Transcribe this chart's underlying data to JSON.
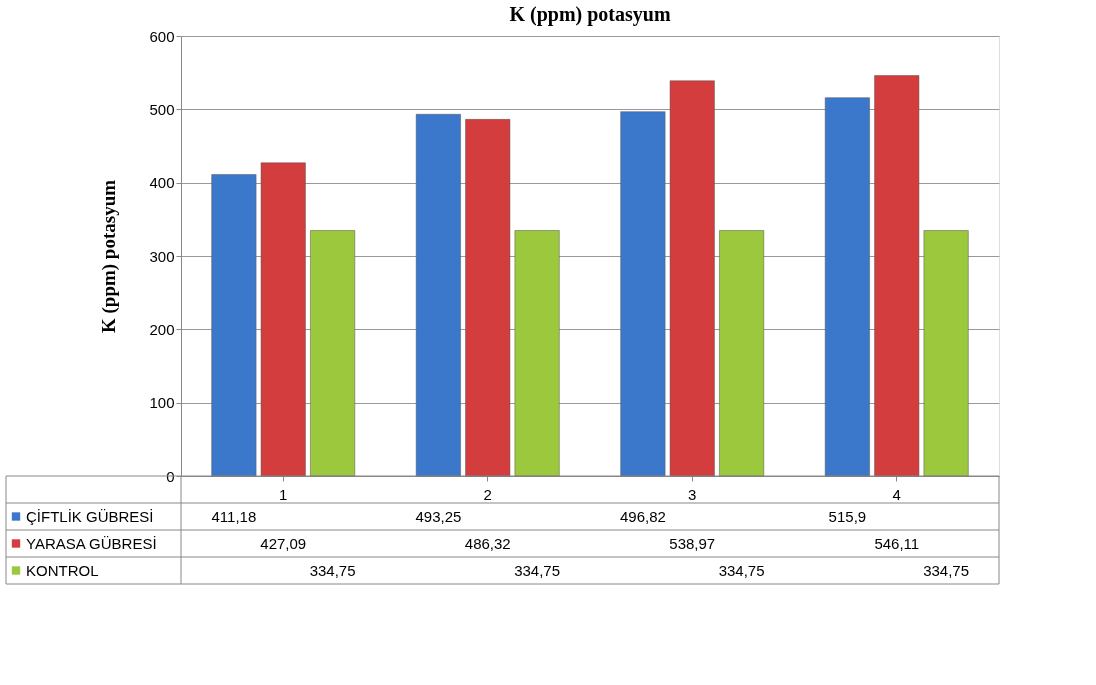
{
  "chart_data": {
    "type": "bar",
    "title": "K (ppm) potasyum",
    "ylabel": "K (ppm) potasyum",
    "categories": [
      "1",
      "2",
      "3",
      "4"
    ],
    "series": [
      {
        "name": "ÇİFTLİK GÜBRESİ",
        "color": "#3b78cc",
        "values": [
          411.18,
          493.25,
          496.82,
          515.9
        ],
        "value_labels": [
          "411,18",
          "493,25",
          "496,82",
          "515,9"
        ]
      },
      {
        "name": "YARASA GÜBRESİ",
        "color": "#d43d3d",
        "values": [
          427.09,
          486.32,
          538.97,
          546.11
        ],
        "value_labels": [
          "427,09",
          "486,32",
          "538,97",
          "546,11"
        ]
      },
      {
        "name": "KONTROL",
        "color": "#9cc83e",
        "values": [
          334.75,
          334.75,
          334.75,
          334.75
        ],
        "value_labels": [
          "334,75",
          "334,75",
          "334,75",
          "334,75"
        ]
      }
    ],
    "ylim": [
      0,
      600
    ],
    "yticks": [
      0,
      100,
      200,
      300,
      400,
      500,
      600
    ],
    "grid": "y",
    "legend": "bottom"
  }
}
